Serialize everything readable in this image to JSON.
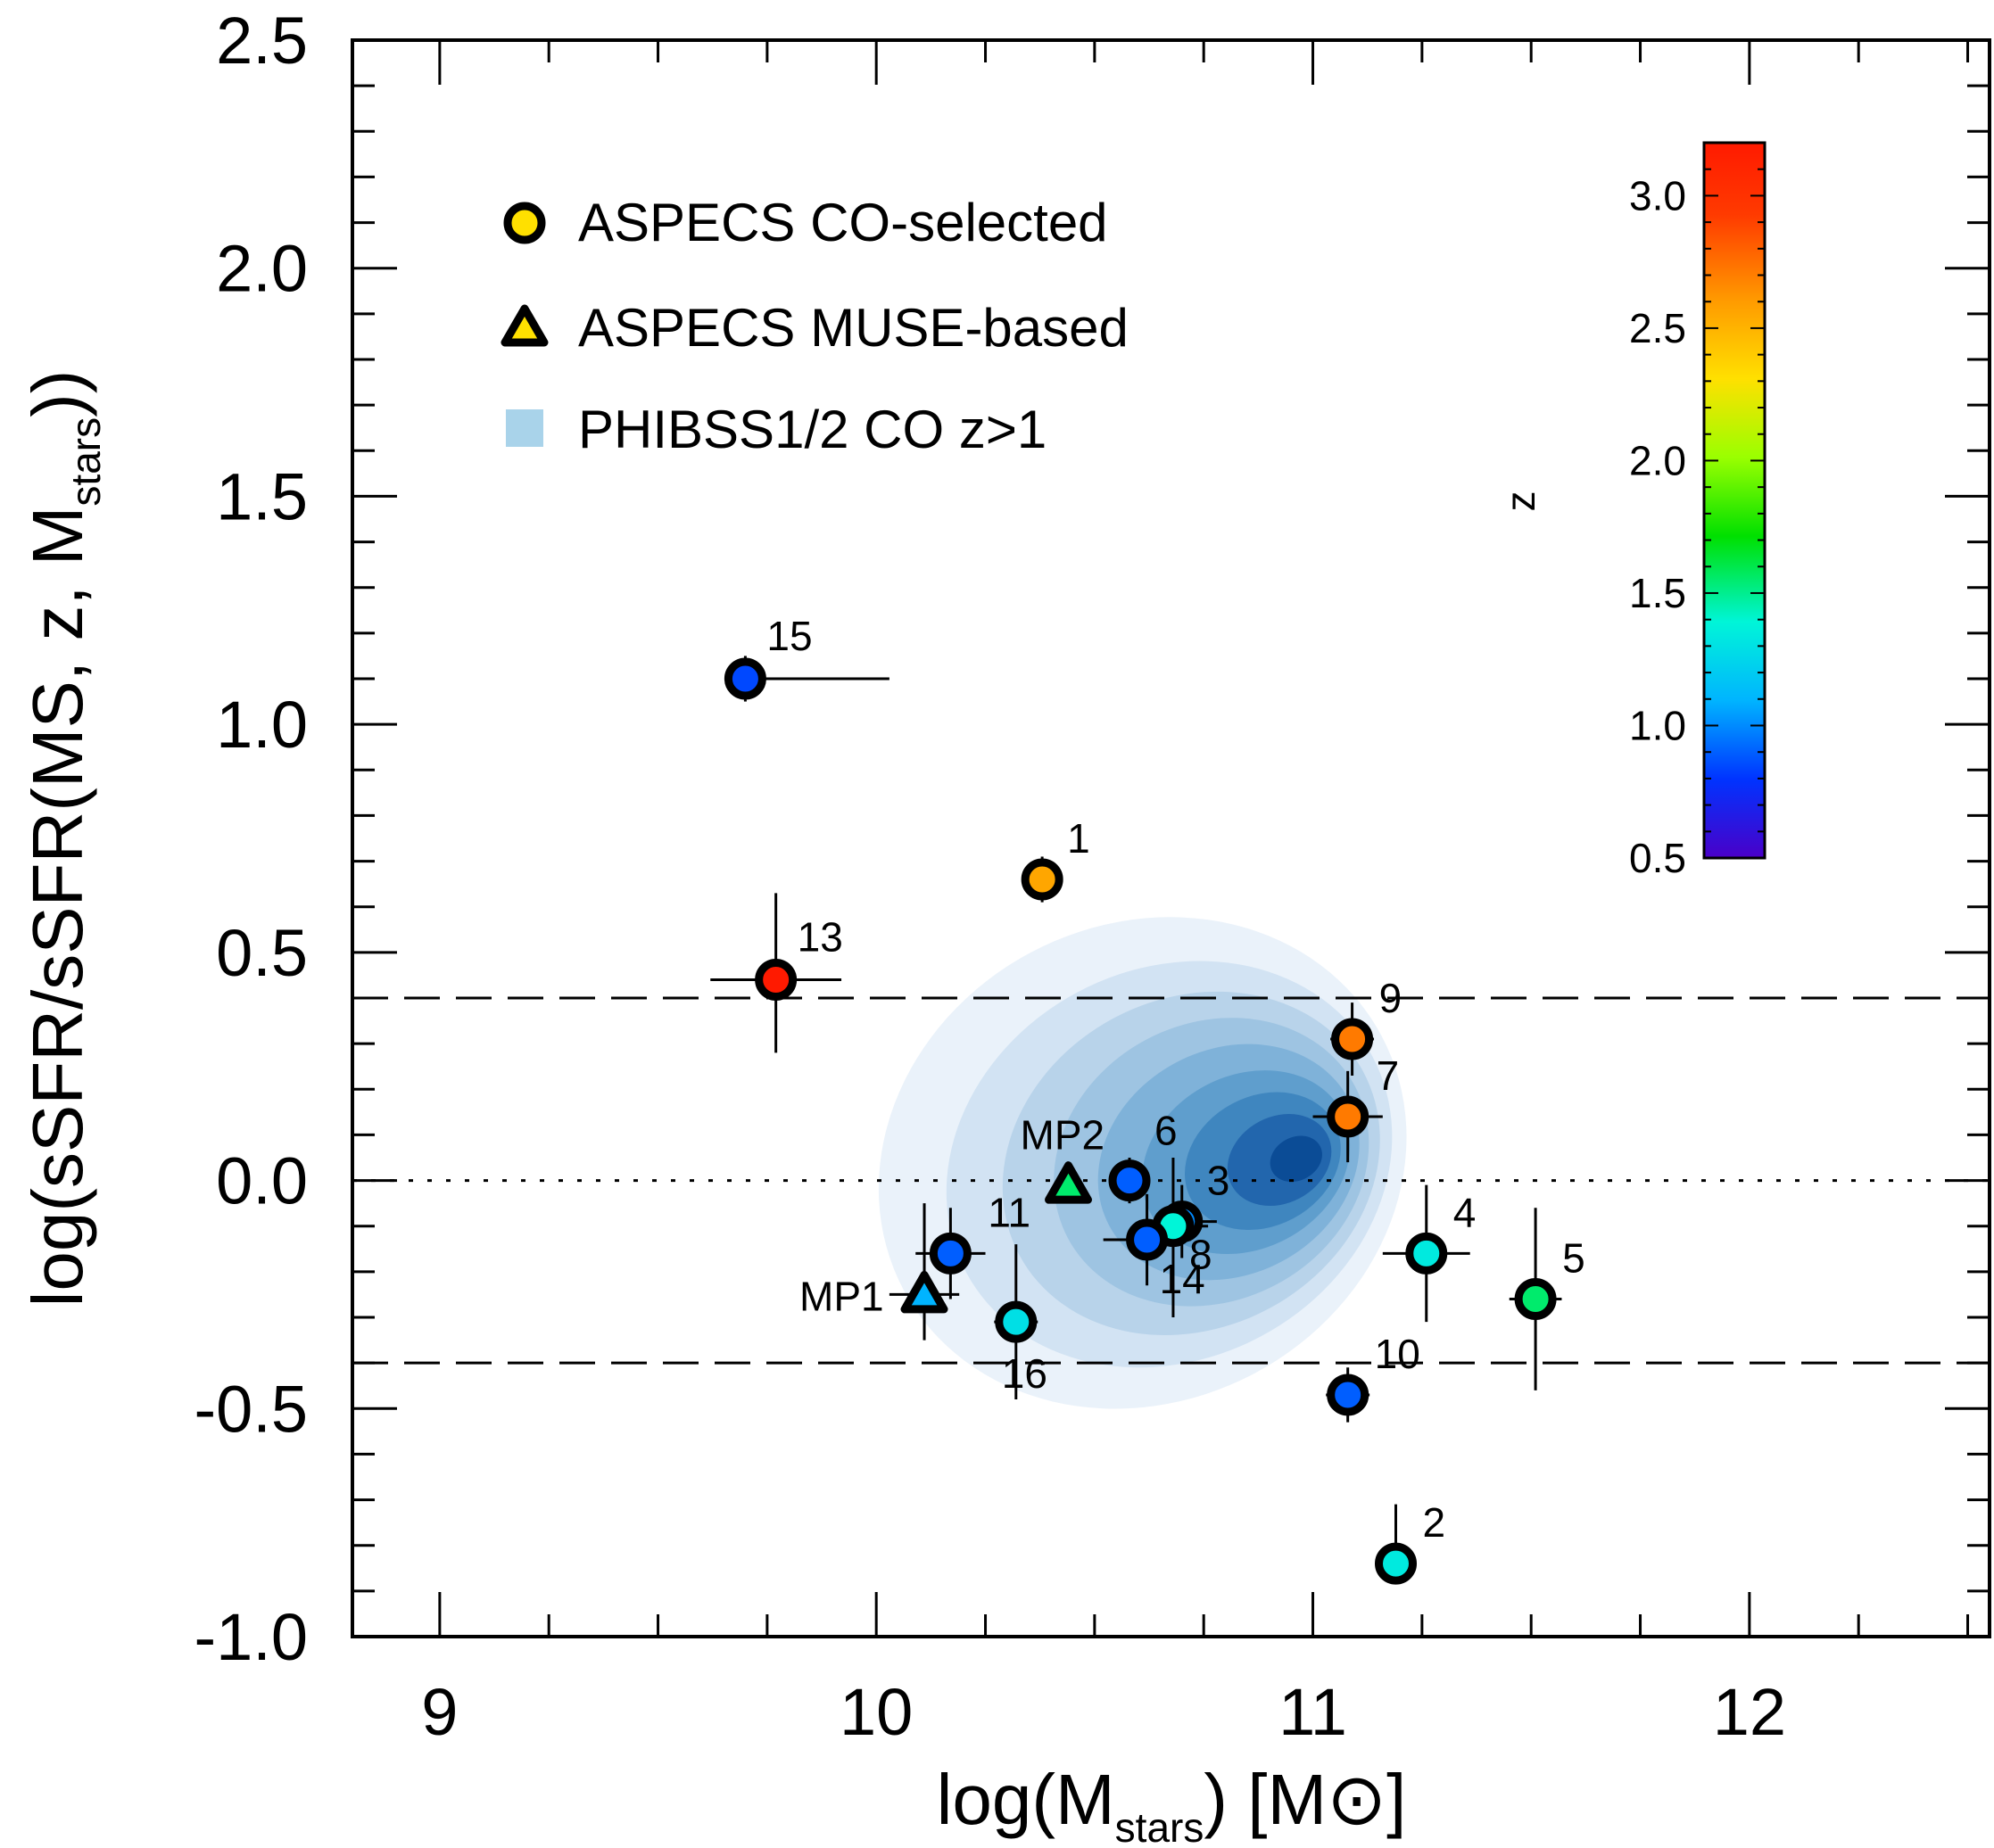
{
  "chart_data": {
    "type": "scatter",
    "xlabel": {
      "main": "log(M",
      "sub": "stars",
      "tail": ") [M",
      "sun": "⊙",
      "close": "]"
    },
    "ylabel": {
      "main": "log(sSFR/sSFR(MS, z, M",
      "sub": "stars",
      "tail": "))"
    },
    "xlim": [
      8.8,
      12.55
    ],
    "ylim": [
      -1.0,
      2.5
    ],
    "xticks": [
      {
        "value": 9,
        "label": "9"
      },
      {
        "value": 10,
        "label": "10"
      },
      {
        "value": 11,
        "label": "11"
      },
      {
        "value": 12,
        "label": "12"
      }
    ],
    "yticks": [
      {
        "value": 2.5,
        "label": "2.5"
      },
      {
        "value": 2.0,
        "label": "2.0"
      },
      {
        "value": 1.5,
        "label": "1.5"
      },
      {
        "value": 1.0,
        "label": "1.0"
      },
      {
        "value": 0.5,
        "label": "0.5"
      },
      {
        "value": 0.0,
        "label": "0.0"
      },
      {
        "value": -0.5,
        "label": "-0.5"
      },
      {
        "value": -1.0,
        "label": "-1.0"
      }
    ],
    "reference_lines": [
      {
        "y": 0.4,
        "style": "dashed"
      },
      {
        "y": -0.4,
        "style": "dashed"
      },
      {
        "y": 0.0,
        "style": "dotted"
      }
    ],
    "legend": {
      "position": "top-left",
      "entries": [
        {
          "label": "ASPECS CO-selected",
          "marker": "circle"
        },
        {
          "label": "ASPECS MUSE-based",
          "marker": "triangle"
        },
        {
          "label": "PHIBSS1/2 CO z>1",
          "marker": "square"
        }
      ]
    },
    "colorbar": {
      "label": "z",
      "range": [
        0.5,
        3.2
      ],
      "ticks": [
        "3.0",
        "2.5",
        "2.0",
        "1.5",
        "1.0",
        "0.5"
      ],
      "tick_values": [
        3.0,
        2.5,
        2.0,
        1.5,
        1.0,
        0.5
      ],
      "colors": [
        "#4a00c8",
        "#0033ff",
        "#00b4ff",
        "#00f5d8",
        "#00e000",
        "#9aff00",
        "#ffe000",
        "#ff9a00",
        "#ff3a00",
        "#ff1a00"
      ]
    },
    "phibss_density": {
      "name": "PHIBSS1/2 CO z>1",
      "peak": [
        11.0,
        0.05
      ],
      "colors": [
        "#eaf2fa",
        "#d2e3f3",
        "#b8d3ea",
        "#9ec4e2",
        "#7fb2d9",
        "#5f9ecd",
        "#3f86bf",
        "#2266ad",
        "#0b4c96"
      ],
      "levels": [
        {
          "rx": 1.0,
          "ry": 0.55,
          "angle": -28
        },
        {
          "rx": 0.85,
          "ry": 0.45,
          "angle": -28
        },
        {
          "rx": 0.72,
          "ry": 0.38,
          "angle": -28
        },
        {
          "rx": 0.6,
          "ry": 0.32,
          "angle": -28
        },
        {
          "rx": 0.5,
          "ry": 0.26,
          "angle": -28
        },
        {
          "rx": 0.4,
          "ry": 0.2,
          "angle": -28
        },
        {
          "rx": 0.3,
          "ry": 0.15,
          "angle": -28
        },
        {
          "rx": 0.2,
          "ry": 0.1,
          "angle": -28
        },
        {
          "rx": 0.1,
          "ry": 0.05,
          "angle": -28
        }
      ]
    },
    "points": [
      {
        "label": "15",
        "x": 9.7,
        "y": 1.1,
        "z": 0.85,
        "marker": "circle",
        "xerr": [
          0.0,
          0.33
        ],
        "yerr": [
          0.05,
          0.05
        ]
      },
      {
        "label": "1",
        "x": 10.38,
        "y": 0.66,
        "z": 2.55,
        "marker": "circle",
        "xerr": [
          0.04,
          0.04
        ],
        "yerr": [
          0.05,
          0.05
        ]
      },
      {
        "label": "13",
        "x": 9.77,
        "y": 0.44,
        "z": 3.2,
        "marker": "circle",
        "xerr": [
          0.15,
          0.15
        ],
        "yerr": [
          0.16,
          0.19
        ]
      },
      {
        "label": "9",
        "x": 11.09,
        "y": 0.31,
        "z": 2.7,
        "marker": "circle",
        "xerr": [
          0.05,
          0.05
        ],
        "yerr": [
          0.08,
          0.08
        ]
      },
      {
        "label": "7",
        "x": 11.08,
        "y": 0.14,
        "z": 2.7,
        "marker": "circle",
        "xerr": [
          0.08,
          0.08
        ],
        "yerr": [
          0.1,
          0.1
        ]
      },
      {
        "label": "6",
        "x": 10.58,
        "y": 0.0,
        "z": 0.9,
        "marker": "circle",
        "xerr": [
          0.04,
          0.04
        ],
        "yerr": [
          0.05,
          0.05
        ]
      },
      {
        "label": "3",
        "x": 10.7,
        "y": -0.09,
        "z": 1.0,
        "marker": "circle",
        "xerr": [
          0.08,
          0.08
        ],
        "yerr": [
          0.08,
          0.08
        ]
      },
      {
        "label": "8",
        "x": 10.68,
        "y": -0.1,
        "z": 1.4,
        "marker": "circle",
        "xerr": [
          0.08,
          0.08
        ],
        "yerr": [
          0.2,
          0.15
        ]
      },
      {
        "label": "14",
        "x": 10.62,
        "y": -0.13,
        "z": 0.9,
        "marker": "circle",
        "xerr": [
          0.1,
          0.1
        ],
        "yerr": [
          0.1,
          0.1
        ]
      },
      {
        "label": "11",
        "x": 10.17,
        "y": -0.16,
        "z": 0.9,
        "marker": "circle",
        "xerr": [
          0.08,
          0.08
        ],
        "yerr": [
          0.1,
          0.1
        ]
      },
      {
        "label": "4",
        "x": 11.26,
        "y": -0.16,
        "z": 1.35,
        "marker": "circle",
        "xerr": [
          0.1,
          0.1
        ],
        "yerr": [
          0.15,
          0.15
        ]
      },
      {
        "label": "5",
        "x": 11.51,
        "y": -0.26,
        "z": 1.55,
        "marker": "circle",
        "xerr": [
          0.06,
          0.06
        ],
        "yerr": [
          0.2,
          0.2
        ]
      },
      {
        "label": "16",
        "x": 10.32,
        "y": -0.31,
        "z": 1.3,
        "marker": "circle",
        "xerr": [
          0.05,
          0.05
        ],
        "yerr": [
          0.17,
          0.17
        ]
      },
      {
        "label": "10",
        "x": 11.08,
        "y": -0.47,
        "z": 0.9,
        "marker": "circle",
        "xerr": [
          0.05,
          0.05
        ],
        "yerr": [
          0.06,
          0.06
        ]
      },
      {
        "label": "2",
        "x": 11.19,
        "y": -0.84,
        "z": 1.35,
        "marker": "circle",
        "xerr": [
          0.04,
          0.04
        ],
        "yerr": [
          0.04,
          0.13
        ]
      },
      {
        "label": "MP2",
        "x": 10.44,
        "y": -0.01,
        "z": 1.55,
        "marker": "triangle",
        "xerr": [
          0.0,
          0.0
        ],
        "yerr": [
          0.0,
          0.0
        ]
      },
      {
        "label": "MP1",
        "x": 10.11,
        "y": -0.25,
        "z": 1.1,
        "marker": "triangle",
        "xerr": [
          0.08,
          0.08
        ],
        "yerr": [
          0.1,
          0.2
        ]
      }
    ]
  }
}
